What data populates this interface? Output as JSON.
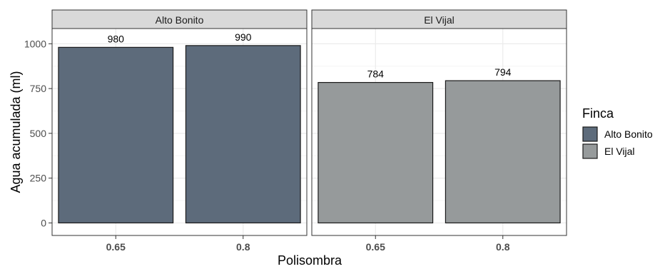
{
  "chart_data": {
    "type": "bar",
    "xlabel": "Polisombra",
    "ylabel": "Agua acumulada (ml)",
    "ylim": [
      -70,
      1085
    ],
    "yticks": [
      0,
      250,
      500,
      750,
      1000
    ],
    "categories": [
      "0.65",
      "0.8"
    ],
    "grid": true,
    "panels": [
      {
        "title": "Alto Bonito",
        "categories": [
          "0.65",
          "0.8"
        ],
        "values": [
          980,
          990
        ],
        "labels": [
          "980",
          "990"
        ],
        "series": "Alto Bonito"
      },
      {
        "title": "El Vijal",
        "categories": [
          "0.65",
          "0.8"
        ],
        "values": [
          784,
          794
        ],
        "labels": [
          "784",
          "794"
        ],
        "series": "El Vijal"
      }
    ],
    "legend": {
      "title": "Finca",
      "position": "right",
      "entries": [
        {
          "name": "Alto Bonito",
          "color": "#5d6b7b"
        },
        {
          "name": "El Vijal",
          "color": "#969a9b"
        }
      ]
    },
    "colors": {
      "strip_bg": "#d9d9d9",
      "panel_border": "#333333",
      "grid_major": "#ebebeb",
      "grid_minor": "#f5f5f5"
    }
  }
}
